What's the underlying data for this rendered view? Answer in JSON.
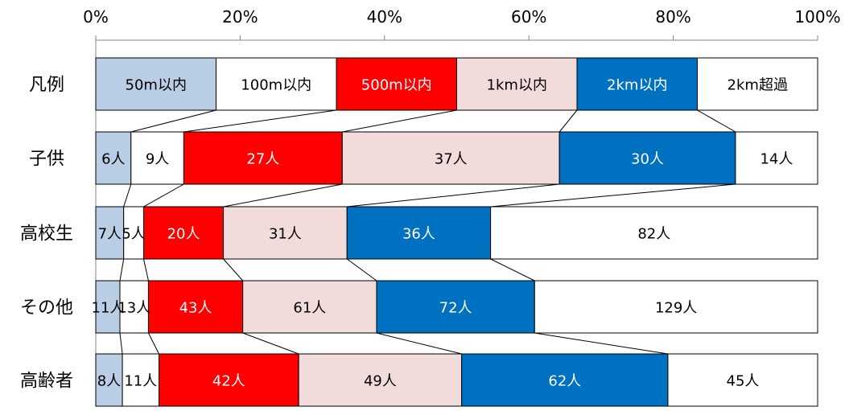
{
  "chart_data": {
    "type": "bar",
    "orientation": "horizontal",
    "stacked": true,
    "normalized": true,
    "xlim": [
      0,
      100
    ],
    "x_ticks": [
      "0%",
      "20%",
      "40%",
      "60%",
      "80%",
      "100%"
    ],
    "legend_row": {
      "label": "凡例",
      "items": [
        {
          "label": "50m以内",
          "color": "#b9cde5",
          "share": 16.67
        },
        {
          "label": "100m以内",
          "color": "#ffffff",
          "share": 16.67
        },
        {
          "label": "500m以内",
          "color": "#ff0000",
          "share": 16.67
        },
        {
          "label": "1km以内",
          "color": "#f2dcdb",
          "share": 16.67
        },
        {
          "label": "2km以内",
          "color": "#0070c0",
          "share": 16.67
        },
        {
          "label": "2km超過",
          "color": "#ffffff",
          "share": 16.67
        }
      ]
    },
    "categories": [
      "子供",
      "高校生",
      "その他",
      "高齢者"
    ],
    "series": [
      {
        "name": "50m以内",
        "color": "#b9cde5",
        "values": [
          6,
          7,
          11,
          8
        ],
        "labels": [
          "6人",
          "7人",
          "11人",
          "8人"
        ]
      },
      {
        "name": "100m以内",
        "color": "#ffffff",
        "values": [
          9,
          5,
          13,
          11
        ],
        "labels": [
          "9人",
          "5人",
          "13人",
          "11人"
        ]
      },
      {
        "name": "500m以内",
        "color": "#ff0000",
        "values": [
          27,
          20,
          43,
          42
        ],
        "labels": [
          "27人",
          "20人",
          "43人",
          "42人"
        ]
      },
      {
        "name": "1km以内",
        "color": "#f2dcdb",
        "values": [
          37,
          31,
          61,
          49
        ],
        "labels": [
          "37人",
          "31人",
          "61人",
          "49人"
        ]
      },
      {
        "name": "2km以内",
        "color": "#0070c0",
        "values": [
          30,
          36,
          72,
          62
        ],
        "labels": [
          "30人",
          "36人",
          "72人",
          "62人"
        ]
      },
      {
        "name": "2km超過",
        "color": "#ffffff",
        "values": [
          14,
          82,
          129,
          45
        ],
        "labels": [
          "14人",
          "82人",
          "129人",
          "45人"
        ]
      }
    ],
    "series_lines": true,
    "grid": false
  }
}
